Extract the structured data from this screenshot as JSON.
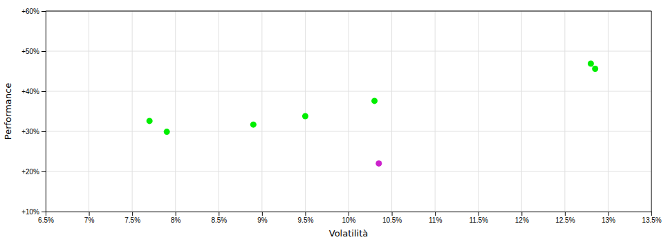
{
  "chart_data": {
    "type": "scatter",
    "xlabel": "Volatilità",
    "ylabel": "Performance",
    "xlim": [
      0.065,
      0.135
    ],
    "ylim": [
      0.1,
      0.6
    ],
    "xticks": [
      {
        "value": 0.065,
        "label": "6.5%"
      },
      {
        "value": 0.07,
        "label": "7%"
      },
      {
        "value": 0.075,
        "label": "7.5%"
      },
      {
        "value": 0.08,
        "label": "8%"
      },
      {
        "value": 0.085,
        "label": "8.5%"
      },
      {
        "value": 0.09,
        "label": "9%"
      },
      {
        "value": 0.095,
        "label": "9.5%"
      },
      {
        "value": 0.1,
        "label": "10%"
      },
      {
        "value": 0.105,
        "label": "10.5%"
      },
      {
        "value": 0.11,
        "label": "11%"
      },
      {
        "value": 0.115,
        "label": "11.5%"
      },
      {
        "value": 0.12,
        "label": "12%"
      },
      {
        "value": 0.125,
        "label": "12.5%"
      },
      {
        "value": 0.13,
        "label": "13%"
      },
      {
        "value": 0.135,
        "label": "13.5%"
      }
    ],
    "yticks": [
      {
        "value": 0.1,
        "label": "+10%"
      },
      {
        "value": 0.2,
        "label": "+20%"
      },
      {
        "value": 0.3,
        "label": "+30%"
      },
      {
        "value": 0.4,
        "label": "+40%"
      },
      {
        "value": 0.5,
        "label": "+50%"
      },
      {
        "value": 0.6,
        "label": "+60%"
      }
    ],
    "grid": true,
    "series": [
      {
        "color": "#00ee00",
        "x": [
          0.077,
          0.079,
          0.089,
          0.095,
          0.103,
          0.128,
          0.1285
        ],
        "values": [
          0.326,
          0.299,
          0.317,
          0.338,
          0.376,
          0.469,
          0.456
        ]
      },
      {
        "color": "#cc22cc",
        "x": [
          0.1035
        ],
        "values": [
          0.22
        ]
      }
    ]
  }
}
